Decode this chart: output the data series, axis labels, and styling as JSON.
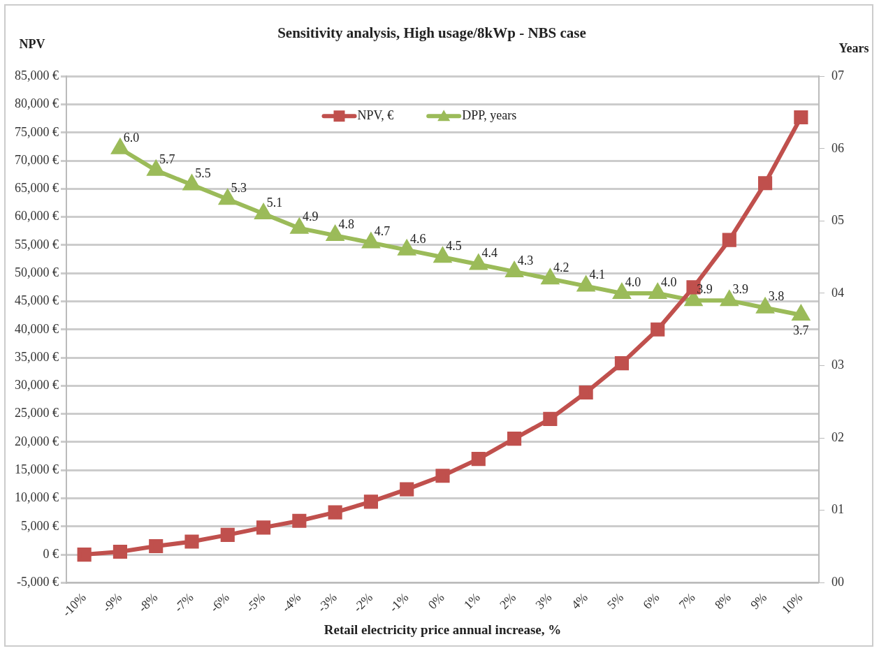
{
  "chart_data": {
    "type": "line",
    "title": "Sensitivity analysis, High usage/8kWp - NBS case",
    "xlabel": "Retail electricity price annual increase, %",
    "ylabel": "NPV",
    "y2label": "Years",
    "categories": [
      "-10%",
      "-9%",
      "-8%",
      "-7%",
      "-6%",
      "-5%",
      "-4%",
      "-3%",
      "-2%",
      "-1%",
      "0%",
      "1%",
      "2%",
      "3%",
      "4%",
      "5%",
      "6%",
      "7%",
      "8%",
      "9%",
      "10%"
    ],
    "series": [
      {
        "name": "NPV, €",
        "color": "#c0504d",
        "marker": "square",
        "values": [
          0,
          500,
          1500,
          2300,
          3500,
          4800,
          6000,
          7500,
          9400,
          11600,
          14000,
          17000,
          20600,
          24100,
          28800,
          34000,
          40000,
          47500,
          55900,
          66000,
          77700
        ]
      },
      {
        "name": "DPP, years",
        "color": "#9bbb59",
        "marker": "triangle",
        "axis": "y2",
        "values": [
          null,
          6.0,
          5.7,
          5.5,
          5.3,
          5.1,
          4.9,
          4.8,
          4.7,
          4.6,
          4.5,
          4.4,
          4.3,
          4.2,
          4.1,
          4.0,
          4.0,
          3.9,
          3.9,
          3.8,
          3.7
        ],
        "value_labels": [
          null,
          "6.0",
          "5.7",
          "5.5",
          "5.3",
          "5.1",
          "4.9",
          "4.8",
          "4.7",
          "4.6",
          "4.5",
          "4.4",
          "4.3",
          "4.2",
          "4.1",
          "4.0",
          "4.0",
          "3.9",
          "3.9",
          "3.8",
          "3.7"
        ]
      }
    ],
    "ylim": [
      -5000,
      85000
    ],
    "yticks": [
      {
        "value": -5000,
        "label": "-5,000 €"
      },
      {
        "value": 0,
        "label": "0 €"
      },
      {
        "value": 5000,
        "label": "5,000 €"
      },
      {
        "value": 10000,
        "label": "10,000 €"
      },
      {
        "value": 15000,
        "label": "15,000 €"
      },
      {
        "value": 20000,
        "label": "20,000 €"
      },
      {
        "value": 25000,
        "label": "25,000 €"
      },
      {
        "value": 30000,
        "label": "30,000 €"
      },
      {
        "value": 35000,
        "label": "35,000 €"
      },
      {
        "value": 40000,
        "label": "40,000 €"
      },
      {
        "value": 45000,
        "label": "45,000 €"
      },
      {
        "value": 50000,
        "label": "50,000 €"
      },
      {
        "value": 55000,
        "label": "55,000 €"
      },
      {
        "value": 60000,
        "label": "60,000 €"
      },
      {
        "value": 65000,
        "label": "65,000 €"
      },
      {
        "value": 70000,
        "label": "70,000 €"
      },
      {
        "value": 75000,
        "label": "75,000 €"
      },
      {
        "value": 80000,
        "label": "80,000 €"
      },
      {
        "value": 85000,
        "label": "85,000 €"
      }
    ],
    "y2lim": [
      0,
      7
    ],
    "y2ticks": [
      {
        "value": 0,
        "label": "00"
      },
      {
        "value": 1,
        "label": "01"
      },
      {
        "value": 2,
        "label": "02"
      },
      {
        "value": 3,
        "label": "03"
      },
      {
        "value": 4,
        "label": "04"
      },
      {
        "value": 5,
        "label": "05"
      },
      {
        "value": 6,
        "label": "06"
      },
      {
        "value": 7,
        "label": "07"
      }
    ],
    "grid": "y",
    "legend": "top"
  }
}
